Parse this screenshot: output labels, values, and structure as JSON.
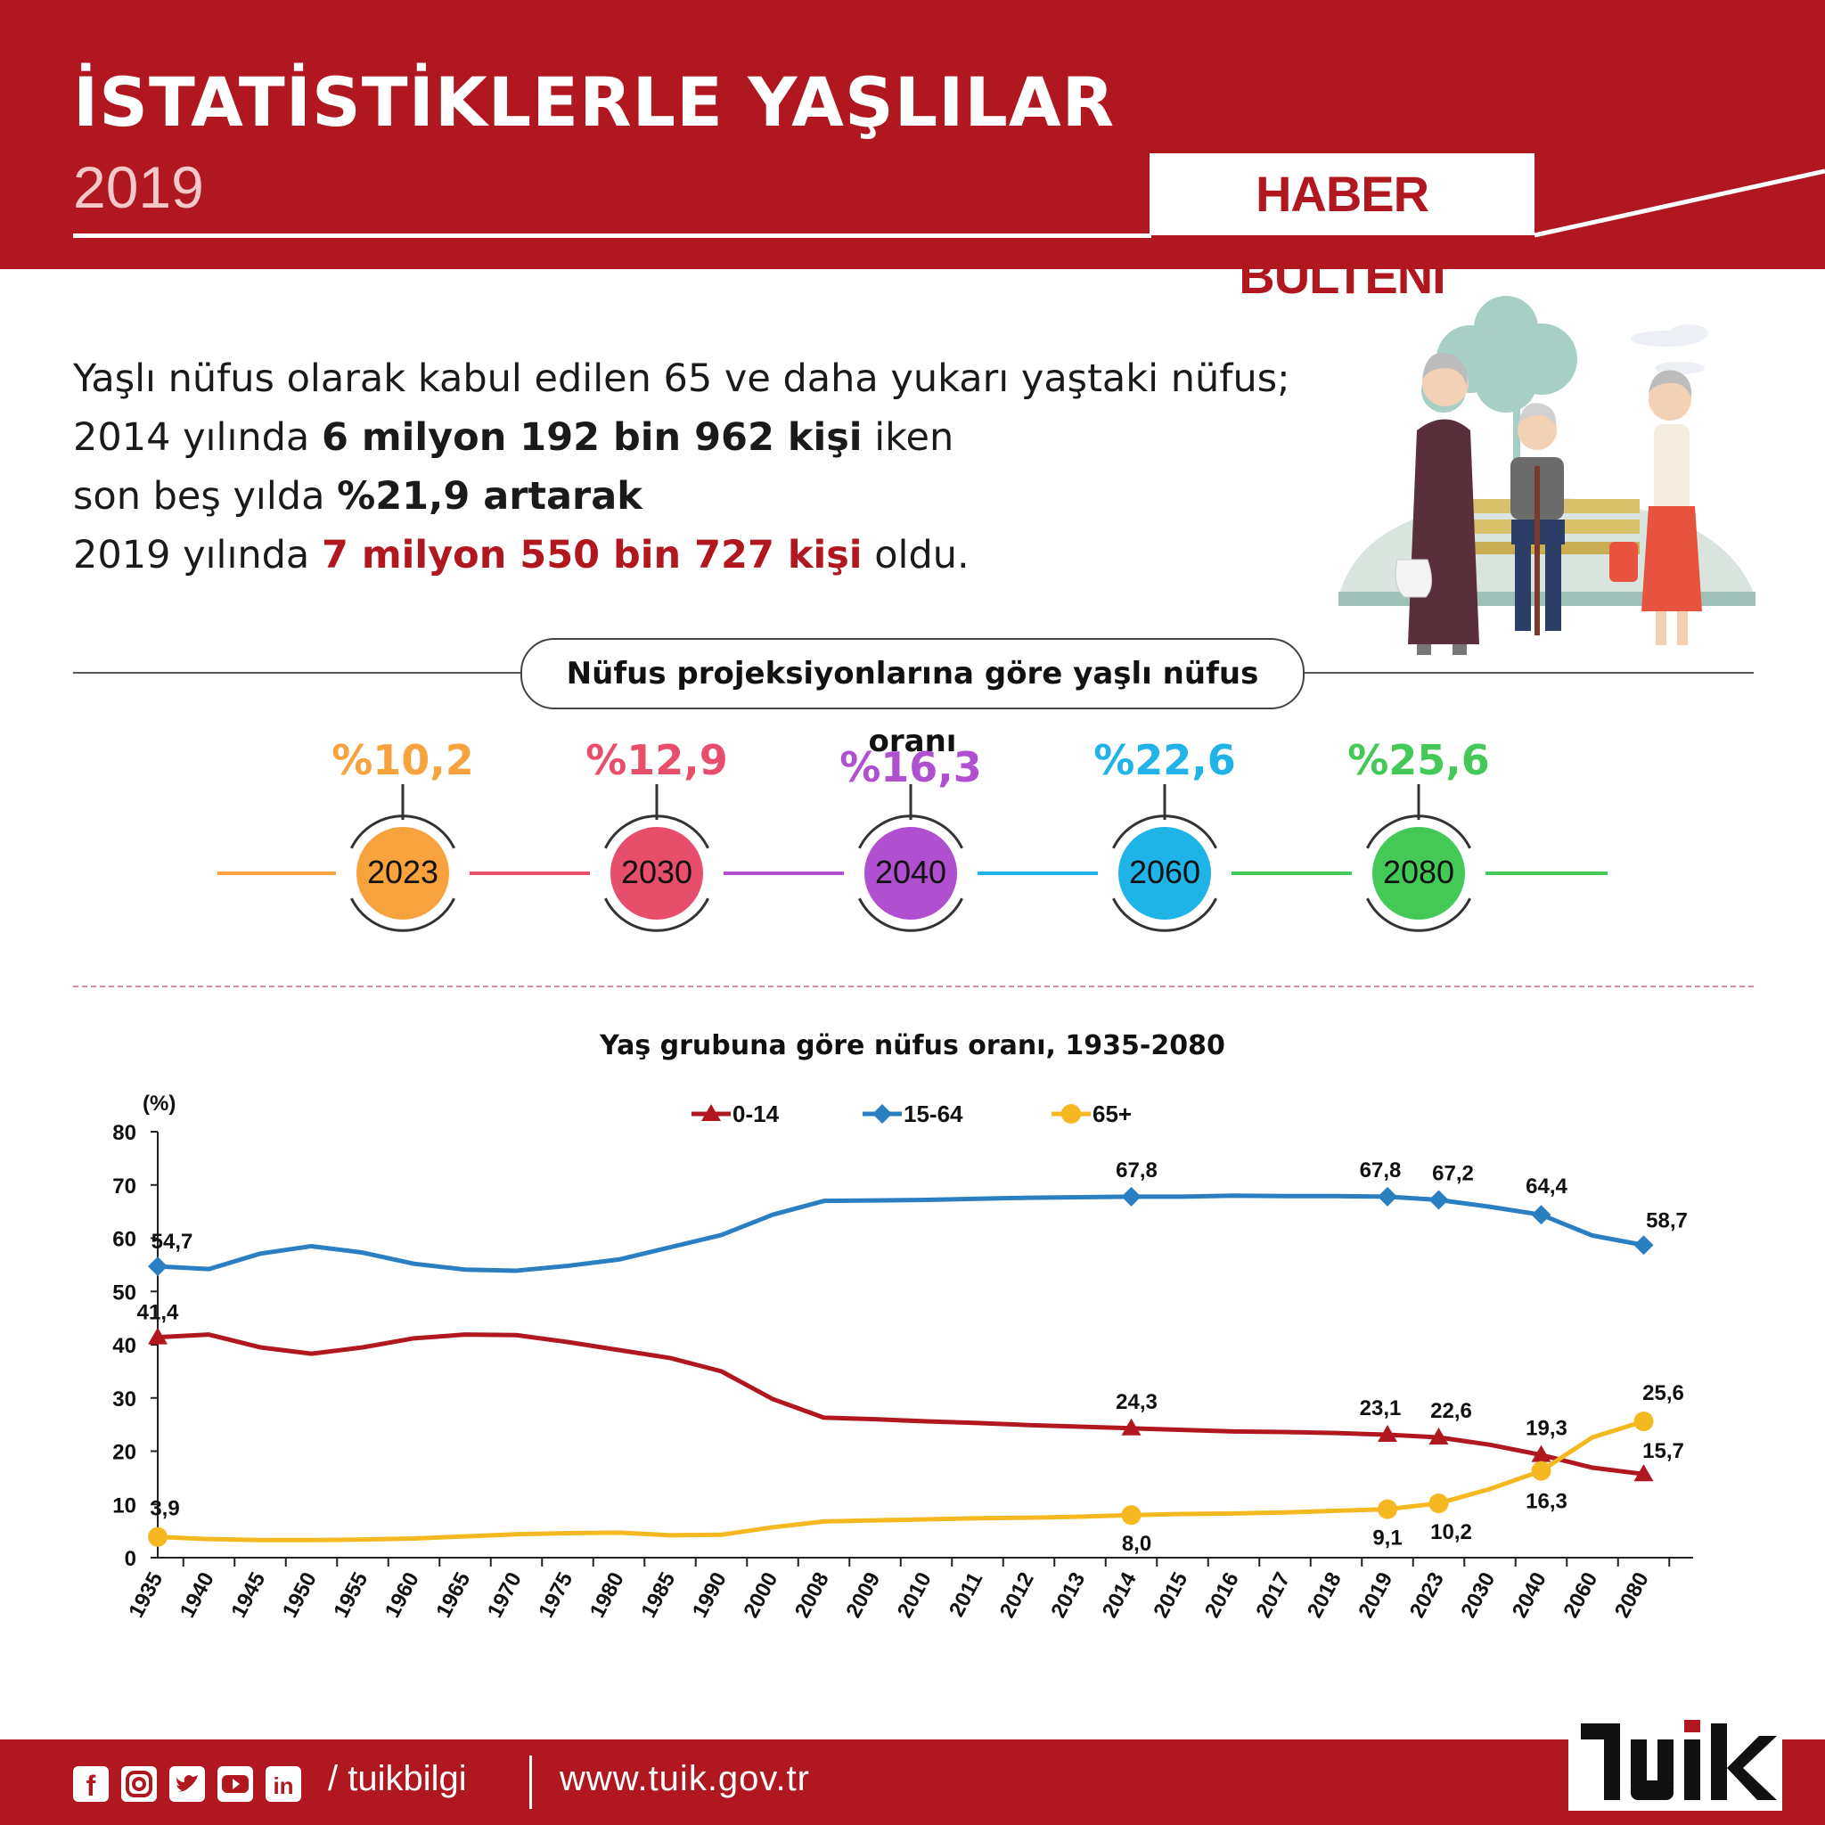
{
  "header": {
    "title": "İSTATİSTİKLERLE YAŞLILAR",
    "year": "2019",
    "bulletin": "HABER BÜLTENİ"
  },
  "intro": {
    "line1": "Yaşlı nüfus olarak kabul edilen 65 ve daha yukarı yaştaki nüfus;",
    "line2_pre": "2014 yılında ",
    "line2_bold": "6 milyon 192 bin 962 kişi",
    "line2_post": " iken",
    "line3_pre": "son beş yılda ",
    "line3_bold": "%21,9 artarak",
    "line4_pre": "2019 yılında ",
    "line4_bold": "7 milyon 550 bin 727 kişi",
    "line4_post": " oldu."
  },
  "projection": {
    "title": "Nüfus projeksiyonlarına göre yaşlı nüfus oranı",
    "items": [
      {
        "year": "2023",
        "pct": "%10,2",
        "color": "#f7a23d",
        "text_color": "#f7a23d"
      },
      {
        "year": "2030",
        "pct": "%12,9",
        "color": "#e64e6c",
        "text_color": "#e64e6c"
      },
      {
        "year": "2040",
        "pct": "%16,3",
        "color": "#b04fcf",
        "text_color": "#b04fcf"
      },
      {
        "year": "2060",
        "pct": "%22,6",
        "color": "#1fb3e8",
        "text_color": "#1fb3e8"
      },
      {
        "year": "2080",
        "pct": "%25,6",
        "color": "#44c957",
        "text_color": "#44c957"
      }
    ]
  },
  "chart_data": {
    "type": "line",
    "title": "Yaş grubuna göre nüfus oranı, 1935-2080",
    "ylabel": "(%)",
    "ylim": [
      0,
      80
    ],
    "yticks": [
      "0",
      "10",
      "20",
      "30",
      "40",
      "50",
      "60",
      "70",
      "80"
    ],
    "categories": [
      "1935",
      "1940",
      "1945",
      "1950",
      "1955",
      "1960",
      "1965",
      "1970",
      "1975",
      "1980",
      "1985",
      "1990",
      "2000",
      "2008",
      "2009",
      "2010",
      "2011",
      "2012",
      "2013",
      "2014",
      "2015",
      "2016",
      "2017",
      "2018",
      "2019",
      "2023",
      "2030",
      "2040",
      "2060",
      "2080"
    ],
    "legend_position": "top",
    "series": [
      {
        "name": "0-14",
        "color": "#b0171f",
        "marker": "triangle",
        "values": [
          41.4,
          41.9,
          39.5,
          38.3,
          39.5,
          41.2,
          41.9,
          41.8,
          40.5,
          39.0,
          37.5,
          35.0,
          29.8,
          26.3,
          26.0,
          25.6,
          25.3,
          24.9,
          24.6,
          24.3,
          24.0,
          23.7,
          23.6,
          23.4,
          23.1,
          22.6,
          21.2,
          19.3,
          16.9,
          15.7
        ],
        "labeled": {
          "0": "41,4",
          "19": "24,3",
          "24": "23,1",
          "25": "22,6",
          "27": "19,3",
          "29": "15,7"
        }
      },
      {
        "name": "15-64",
        "color": "#2a7fc1",
        "marker": "diamond",
        "values": [
          54.7,
          54.2,
          57.1,
          58.5,
          57.3,
          55.2,
          54.1,
          53.9,
          54.8,
          56.0,
          58.3,
          60.6,
          64.4,
          67.0,
          67.1,
          67.2,
          67.4,
          67.6,
          67.7,
          67.8,
          67.8,
          68.0,
          67.9,
          67.9,
          67.8,
          67.2,
          65.9,
          64.4,
          60.5,
          58.7
        ],
        "labeled": {
          "0": "54,7",
          "19": "67,8",
          "24": "67,8",
          "25": "67,2",
          "27": "64,4",
          "29": "58,7"
        }
      },
      {
        "name": "65+",
        "color": "#f5b821",
        "marker": "circle",
        "values": [
          3.9,
          3.5,
          3.3,
          3.3,
          3.4,
          3.6,
          4.0,
          4.4,
          4.6,
          4.7,
          4.2,
          4.3,
          5.7,
          6.8,
          7.0,
          7.2,
          7.4,
          7.5,
          7.7,
          8.0,
          8.2,
          8.3,
          8.5,
          8.8,
          9.1,
          10.2,
          12.9,
          16.3,
          22.6,
          25.6
        ],
        "labeled": {
          "0": "3,9",
          "19": "8,0",
          "24": "9,1",
          "25": "10,2",
          "27": "16,3",
          "29": "25,6"
        }
      }
    ]
  },
  "footer": {
    "handle": "/ tuikbilgi",
    "url": "www.tuik.gov.tr",
    "social_icons": [
      "facebook-icon",
      "instagram-icon",
      "twitter-icon",
      "youtube-icon",
      "linkedin-icon"
    ],
    "logo": "TÜİK"
  }
}
